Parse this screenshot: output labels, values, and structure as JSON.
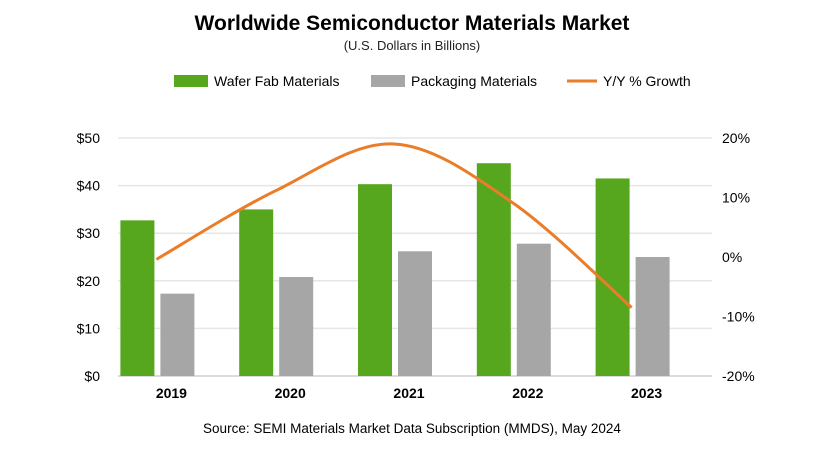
{
  "chart_data": {
    "type": "bar",
    "title": "Worldwide Semiconductor Materials Market",
    "subtitle": "(U.S. Dollars in Billions)",
    "source": "Source:  SEMI Materials Market Data Subscription (MMDS), May 2024",
    "categories": [
      "2019",
      "2020",
      "2021",
      "2022",
      "2023"
    ],
    "series": [
      {
        "name": "Wafer Fab Materials",
        "type": "bar",
        "axis": "left",
        "color": "#56a61e",
        "values": [
          32.7,
          35.0,
          40.3,
          44.7,
          41.5
        ]
      },
      {
        "name": "Packaging  Materials",
        "type": "bar",
        "axis": "left",
        "color": "#a6a6a6",
        "values": [
          17.3,
          20.8,
          26.2,
          27.8,
          25.0
        ]
      },
      {
        "name": "Y/Y % Growth",
        "type": "line",
        "axis": "right",
        "color": "#ea7d2a",
        "values": [
          -0.4,
          11.1,
          19.0,
          9.1,
          -8.5
        ]
      }
    ],
    "left_axis": {
      "ylim": [
        0,
        50
      ],
      "ticks": [
        "$0",
        "$10",
        "$20",
        "$30",
        "$40",
        "$50"
      ]
    },
    "right_axis": {
      "ylim": [
        -20,
        20
      ],
      "ticks": [
        "-20%",
        "-10%",
        "0%",
        "10%",
        "20%"
      ]
    },
    "grid": true,
    "legend_placement": "top"
  }
}
